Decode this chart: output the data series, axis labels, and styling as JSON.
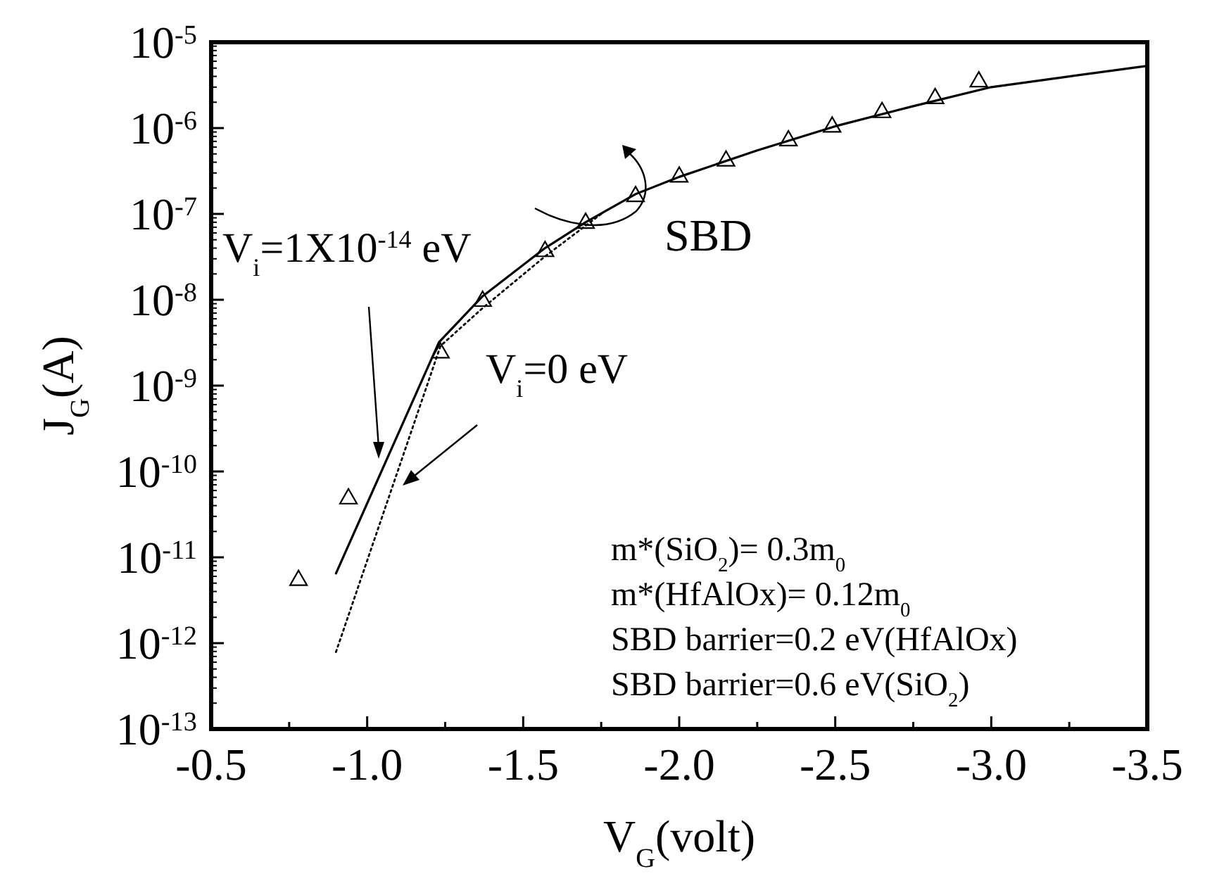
{
  "chart_data": {
    "type": "line",
    "xlabel": "V$_{G}$(volt)",
    "ylabel": "J$_{G}$(A)",
    "log": "y",
    "xlim": [
      -0.5,
      -3.5
    ],
    "ylim": [
      1e-13,
      1e-05
    ],
    "xticks": [
      -0.5,
      {
        "value": -0.75,
        "label": null
      },
      {
        "value": -1,
        "label": "-1.0"
      },
      {
        "value": -1.25,
        "label": null
      },
      -1.5,
      {
        "value": -1.75,
        "label": null
      },
      {
        "value": -2,
        "label": "-2.0"
      },
      {
        "value": -2.25,
        "label": null
      },
      -2.5,
      {
        "value": -2.75,
        "label": null
      },
      {
        "value": -3,
        "label": "-3.0"
      },
      {
        "value": -3.25,
        "label": null
      },
      -3.5
    ],
    "yticks": [
      {
        "value": 1e-13,
        "label": "10$^{-13}$"
      },
      {
        "value": 1e-12,
        "label": "10$^{-12}$"
      },
      {
        "value": 1e-11,
        "label": "10$^{-11}$"
      },
      {
        "value": 1e-10,
        "label": "10$^{-10}$"
      },
      {
        "value": 1e-09,
        "label": "10$^{-9}$"
      },
      {
        "value": 1e-08,
        "label": "10$^{-8}$"
      },
      {
        "value": 1e-07,
        "label": "10$^{-7}$"
      },
      {
        "value": 1e-06,
        "label": "10$^{-6}$"
      },
      {
        "value": 1e-05,
        "label": "10$^{-5}$"
      }
    ],
    "grid": false,
    "series": [
      {
        "type": "scatter",
        "marker": "triangle",
        "color": "#000000",
        "x": [
          -0.78,
          -0.94,
          -1.235,
          -1.37,
          -1.57,
          -1.7,
          -1.86,
          -2.0,
          -2.15,
          -2.35,
          -2.49,
          -2.65,
          -2.82,
          -2.96
        ],
        "values": [
          5.6e-12,
          5e-11,
          2.5e-09,
          1e-08,
          3.8e-08,
          8.1e-08,
          1.66e-07,
          2.8e-07,
          4.3e-07,
          7.4e-07,
          1.07e-06,
          1.58e-06,
          2.3e-06,
          3.6e-06
        ]
      },
      {
        "name": "V$_{i}$=1X10$^{-14}$ eV",
        "color": "#000000",
        "line_style": "solid",
        "x": [
          -0.9,
          -1.23,
          -1.37,
          -1.57,
          -1.7,
          -1.86,
          -2.0,
          -2.25,
          -2.5,
          -2.75,
          -3.0,
          -3.25,
          -3.5
        ],
        "values": [
          6.5e-12,
          3.2e-09,
          1.1e-08,
          4e-08,
          8e-08,
          1.7e-07,
          2.7e-07,
          5.5e-07,
          1.05e-06,
          1.8e-06,
          3e-06,
          4e-06,
          5.3e-06
        ]
      },
      {
        "name": "V$_{i}$=0 eV",
        "color": "#000000",
        "line_style": "dotted",
        "x": [
          -0.9,
          -1.235,
          -1.37,
          -1.57,
          -1.75
        ],
        "values": [
          7.9e-13,
          2.9e-09,
          8e-09,
          3.2e-08,
          1e-07
        ]
      }
    ],
    "annotations": [
      "SBD",
      "m*(SiO$_{2}$)= 0.3m$_{0}$",
      "m*(HfAlOx)= 0.12m$_{0}$",
      "SBD barrier=0.2 eV(HfAlOx)",
      "SBD barrier=0.6 eV(SiO$_{2}$)"
    ]
  }
}
